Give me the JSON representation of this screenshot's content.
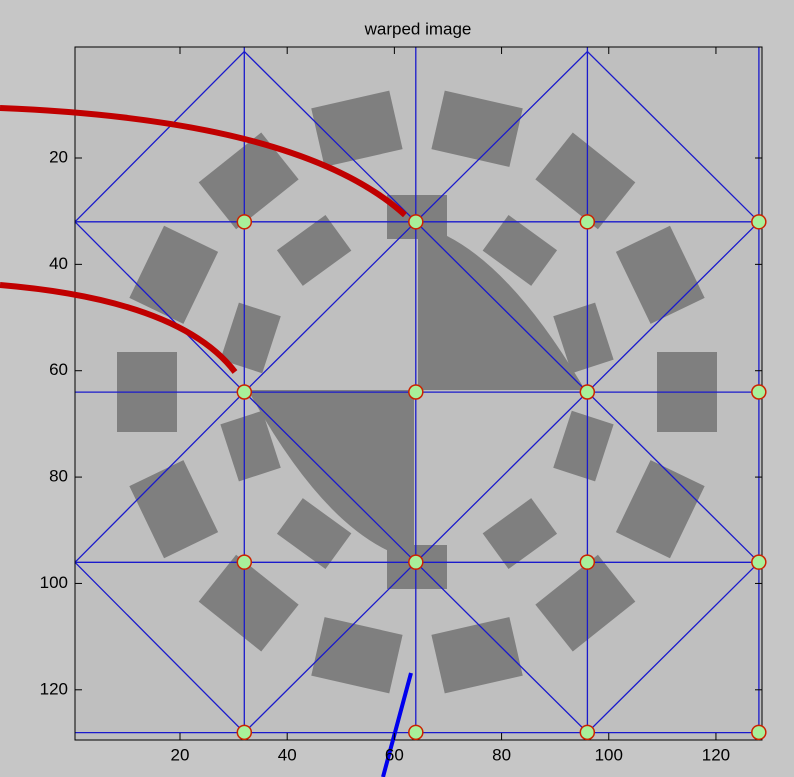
{
  "chart_data": {
    "type": "image",
    "title": "warped image",
    "xlim": [
      0.5,
      128.5
    ],
    "ylim": [
      0.5,
      128.5
    ],
    "xticks": [
      20,
      40,
      60,
      80,
      100,
      120
    ],
    "yticks": [
      20,
      40,
      60,
      80,
      100,
      120
    ],
    "control_points": {
      "x": [
        32,
        64,
        96,
        128,
        32,
        64,
        96,
        128,
        32,
        64,
        96,
        128,
        32,
        64,
        96,
        128
      ],
      "y": [
        32,
        32,
        32,
        32,
        64,
        64,
        64,
        64,
        96,
        96,
        96,
        96,
        128,
        128,
        128,
        128
      ],
      "color": "#a8f09a",
      "edge_color": "#cc2200"
    }
  }
}
